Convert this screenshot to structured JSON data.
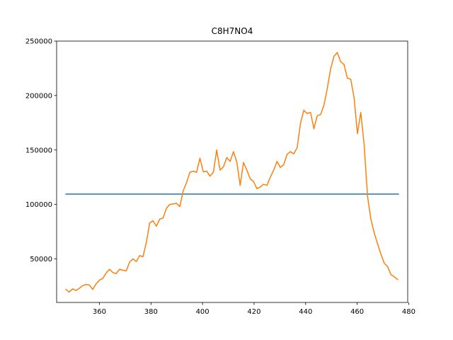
{
  "chart_data": {
    "type": "line",
    "title": "C8H7NO4",
    "xlabel": "",
    "ylabel": "",
    "xlim": [
      343.4,
      479.6
    ],
    "ylim": [
      10000,
      250000
    ],
    "xticks": [
      360,
      380,
      400,
      420,
      440,
      460,
      480
    ],
    "yticks": [
      50000,
      100000,
      150000,
      200000,
      250000
    ],
    "grid": false,
    "series": [
      {
        "color": "#1f77b4",
        "x": [
          347,
          476
        ],
        "y": [
          109500,
          109500
        ]
      },
      {
        "color": "#ff7f0e",
        "x": [
          347,
          348.3,
          349.6,
          350.9,
          352.2,
          353.5,
          354.8,
          356.1,
          357.4,
          358.7,
          360.0,
          361.3,
          362.6,
          363.9,
          365.2,
          366.5,
          367.8,
          369.1,
          370.4,
          371.7,
          373.0,
          374.3,
          375.6,
          376.9,
          378.2,
          379.5,
          380.8,
          382.1,
          383.4,
          384.7,
          386.0,
          387.3,
          388.6,
          389.9,
          391.2,
          392.5,
          393.8,
          395.1,
          396.4,
          397.7,
          399.0,
          400.3,
          401.6,
          402.9,
          404.2,
          405.5,
          406.8,
          408.1,
          409.4,
          410.7,
          412.0,
          413.3,
          414.6,
          415.9,
          417.2,
          418.5,
          419.8,
          421.1,
          422.4,
          423.7,
          425.0,
          426.3,
          427.6,
          428.9,
          430.2,
          431.5,
          432.8,
          434.1,
          435.4,
          436.7,
          438.0,
          439.3,
          440.6,
          441.9,
          443.2,
          444.5,
          445.8,
          447.1,
          448.4,
          449.7,
          451.0,
          452.3,
          453.6,
          454.9,
          456.2,
          457.5,
          458.8,
          460.1,
          461.4,
          462.7,
          464.0,
          465.3,
          466.6,
          467.9,
          469.2,
          470.5,
          471.8,
          473.1,
          474.4,
          475.7
        ],
        "y": [
          22000,
          19500,
          22500,
          21000,
          23000,
          25500,
          26500,
          26000,
          22000,
          27000,
          30500,
          32000,
          37000,
          40500,
          37500,
          36500,
          40500,
          39500,
          39000,
          47000,
          50000,
          47500,
          53000,
          52000,
          65000,
          83000,
          85000,
          80000,
          86500,
          87500,
          96500,
          100000,
          100500,
          101000,
          98000,
          112500,
          120000,
          129500,
          130500,
          129500,
          142500,
          130000,
          130500,
          126000,
          129500,
          150000,
          131500,
          134500,
          143000,
          139500,
          148500,
          139000,
          117500,
          138500,
          131500,
          123500,
          121000,
          114500,
          116000,
          118500,
          117500,
          125000,
          131500,
          139500,
          134000,
          136500,
          146000,
          148500,
          146500,
          152000,
          174500,
          186500,
          183500,
          184500,
          169500,
          181500,
          182500,
          191000,
          206500,
          224500,
          236000,
          239500,
          231000,
          228500,
          216000,
          215000,
          198000,
          165000,
          184500,
          155000,
          108000,
          86500,
          74000,
          64000,
          54500,
          46000,
          43000,
          35500,
          33500,
          31000
        ]
      }
    ]
  }
}
